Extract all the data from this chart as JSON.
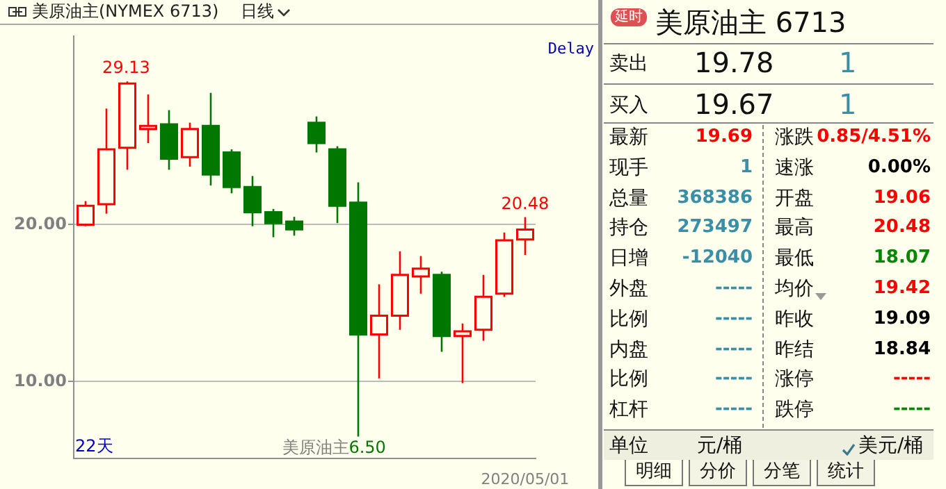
{
  "chart_data": [
    {
      "type": "candlestick",
      "title": "美原油主(NYMEX 6713)",
      "subtitle": "日线",
      "categories": [
        null,
        null,
        null,
        null,
        null,
        null,
        null,
        null,
        null,
        null,
        null,
        null,
        null,
        null,
        null,
        null,
        null,
        null,
        null,
        null,
        null,
        "2020/05/01"
      ],
      "ohlc": [
        [
          20.0,
          21.5,
          19.9,
          21.2
        ],
        [
          21.3,
          27.4,
          20.7,
          24.8
        ],
        [
          24.9,
          29.13,
          23.5,
          29.0
        ],
        [
          26.1,
          28.3,
          25.2,
          26.3
        ],
        [
          26.4,
          27.3,
          23.5,
          24.2
        ],
        [
          24.3,
          26.5,
          23.7,
          26.1
        ],
        [
          26.3,
          28.4,
          22.5,
          23.2
        ],
        [
          24.6,
          24.8,
          22.0,
          22.4
        ],
        [
          22.4,
          23.1,
          19.9,
          20.8
        ],
        [
          20.8,
          21.0,
          19.2,
          20.1
        ],
        [
          20.2,
          20.5,
          19.3,
          19.7
        ],
        [
          26.5,
          26.9,
          24.6,
          25.2
        ],
        [
          24.8,
          25.0,
          20.1,
          21.2
        ],
        [
          21.4,
          22.7,
          6.5,
          13.0
        ],
        [
          13.0,
          16.2,
          10.2,
          14.2
        ],
        [
          14.2,
          18.3,
          13.3,
          16.8
        ],
        [
          16.7,
          18.0,
          15.6,
          17.2
        ],
        [
          16.8,
          17.0,
          11.9,
          12.9
        ],
        [
          12.9,
          13.7,
          9.9,
          13.2
        ],
        [
          13.3,
          16.8,
          12.6,
          15.4
        ],
        [
          15.6,
          19.5,
          15.4,
          19.0
        ],
        [
          19.06,
          20.48,
          18.07,
          19.69
        ]
      ],
      "colors": [
        "#ff0000",
        "#ff0000",
        "#ff0000",
        "#ff0000",
        "#007700",
        "#ff0000",
        "#007700",
        "#007700",
        "#007700",
        "#007700",
        "#007700",
        "#007700",
        "#007700",
        "#007700",
        "#ff0000",
        "#ff0000",
        "#ff0000",
        "#007700",
        "#ff0000",
        "#ff0000",
        "#ff0000",
        "#ff0000"
      ],
      "ylim": [
        5.1,
        32
      ],
      "yticks": [
        {
          "value": 10,
          "label": "10.00"
        },
        {
          "value": 20,
          "label": "20.00"
        }
      ],
      "grid": "y",
      "annotations": [
        "Delay",
        "22天",
        "美原油主",
        {
          "text": "29.13",
          "y": 29.13
        },
        {
          "text": "20.48",
          "y": 20.48
        },
        "6.50"
      ]
    },
    {
      "type": "other",
      "annotations": [
        "延时",
        "美原油主  6713",
        "卖出",
        "19.78",
        "1",
        "买入",
        "19.67",
        "1",
        "最新",
        "19.69",
        "涨跌",
        "0.85/4.51%",
        "现手",
        "1",
        "速涨",
        "0.00%",
        "总量",
        "368386",
        "开盘",
        "19.06",
        "持仓",
        "273497",
        "最高",
        "20.48",
        "日增",
        "-12040",
        "最低",
        "18.07",
        "外盘",
        "-----",
        "均价",
        "19.42",
        "比例",
        "-----",
        "昨收",
        "19.09",
        "内盘",
        "-----",
        "昨结",
        "18.84",
        "比例",
        "-----",
        "涨停",
        "-----",
        "杠杆",
        "-----",
        "跌停",
        "-----",
        "单位",
        "元/桶",
        "美元/桶",
        "明细",
        "分价",
        "分笔",
        "统计"
      ]
    }
  ]
}
